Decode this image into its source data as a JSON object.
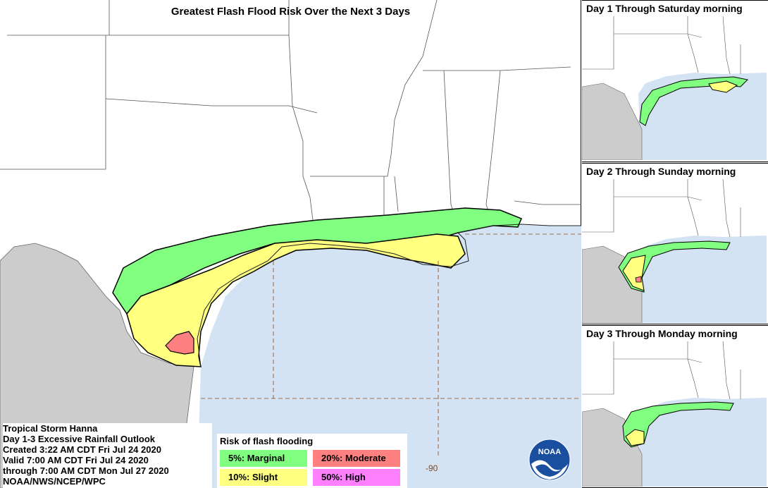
{
  "title": "Greatest Flash Flood Risk Over the Next 3 Days",
  "info": {
    "storm": "Tropical Storm Hanna",
    "product": "Day 1-3 Excessive Rainfall Outlook",
    "created": "Created 3:22 AM CDT Fri Jul 24 2020",
    "valid": "Valid 7:00 AM CDT Fri Jul 24 2020",
    "through": "through 7:00 AM CDT Mon Jul 27 2020",
    "agency": "NOAA/NWS/NCEP/WPC"
  },
  "legend": {
    "title": "Risk of flash flooding",
    "items": [
      {
        "label": "5%: Marginal",
        "color": "#80ff80"
      },
      {
        "label": "20%: Moderate",
        "color": "#ff8080"
      },
      {
        "label": "10%: Slight",
        "color": "#ffff80"
      },
      {
        "label": "50%: High",
        "color": "#ff80ff"
      }
    ]
  },
  "longitude_label": "-90",
  "panels": [
    {
      "title": "Day 1 Through Saturday morning"
    },
    {
      "title": "Day 2 Through Sunday morning"
    },
    {
      "title": "Day 3 Through Monday morning"
    }
  ],
  "logo_text": "NOAA",
  "colors": {
    "water": "#d3e3f3",
    "mexico": "#cccccc",
    "land": "#ffffff",
    "marginal": "#80ff80",
    "slight": "#ffff80",
    "moderate": "#ff8080",
    "high": "#ff80ff"
  }
}
